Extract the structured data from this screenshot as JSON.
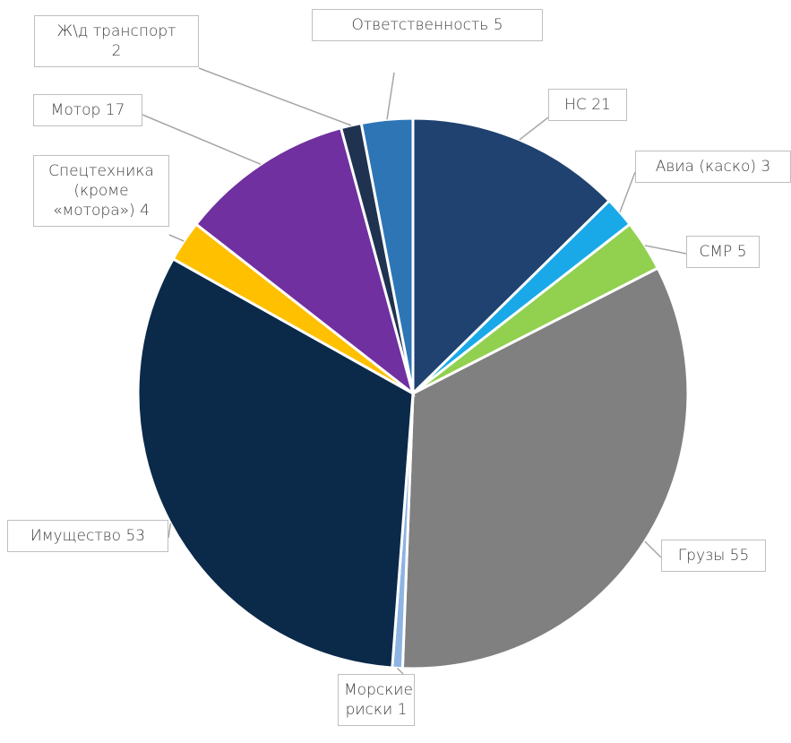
{
  "chart_data": {
    "type": "pie",
    "categories": [
      "НС",
      "Авиа (каско)",
      "СМР",
      "Грузы",
      "Морские риски",
      "Имущество ",
      "Спецтехника (кроме «мотора»)",
      "Мотор",
      "Ж\\д транспорт",
      "Ответственность"
    ],
    "values": [
      21,
      3,
      5,
      55,
      1,
      53,
      4,
      17,
      2,
      5
    ],
    "colors": [
      "#1f4270",
      "#1aa9e8",
      "#92d050",
      "#808080",
      "#8db4e2",
      "#0b2a4a",
      "#ffc000",
      "#7030a0",
      "#1f3350",
      "#2e75b6"
    ]
  }
}
